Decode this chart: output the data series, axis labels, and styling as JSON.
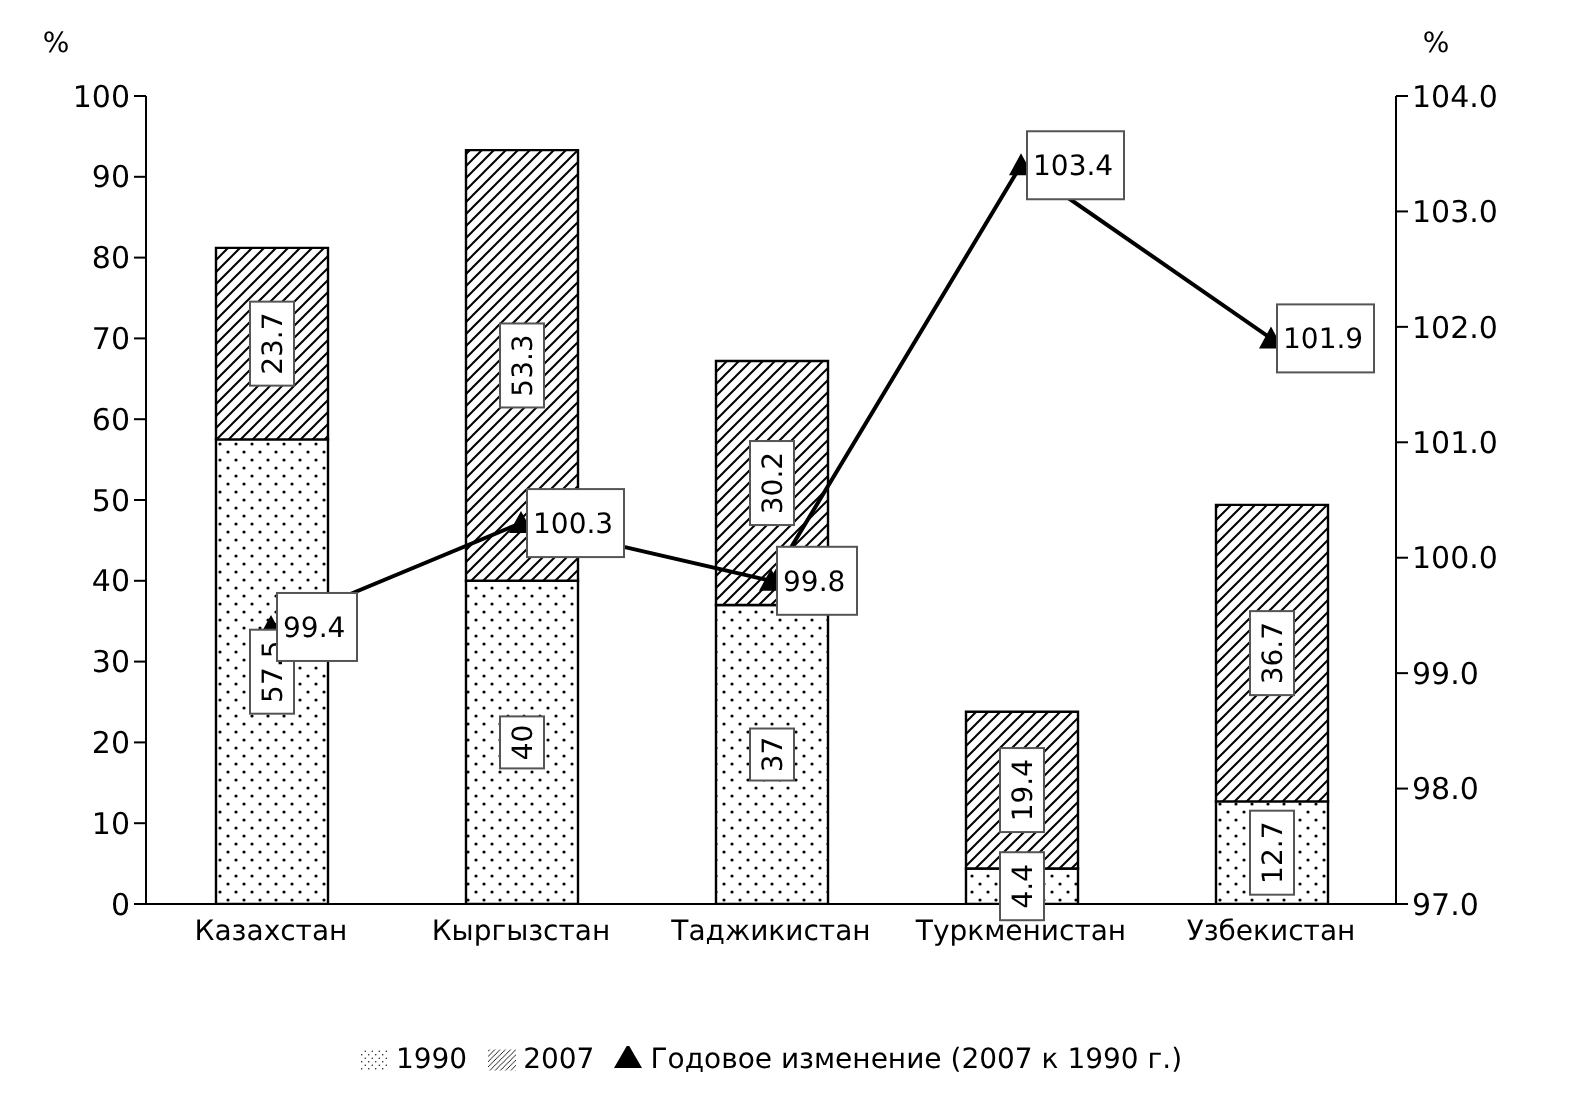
{
  "chart_data": {
    "type": "bar",
    "stacked": true,
    "categories": [
      "Казахстан",
      "Кыргызстан",
      "Таджикистан",
      "Туркменистан",
      "Узбекистан"
    ],
    "series": [
      {
        "name": "1990",
        "color": "#000000",
        "values": [
          57.5,
          40,
          37,
          4.4,
          12.7
        ]
      },
      {
        "name": "2007",
        "color": "#000000",
        "values": [
          23.7,
          53.3,
          30.2,
          19.4,
          36.7
        ]
      },
      {
        "name": "Годовое изменение (2007 к 1990 г.)",
        "type": "line",
        "axis": "y2",
        "color": "#000000",
        "values": [
          99.4,
          100.3,
          99.8,
          103.4,
          101.9
        ]
      }
    ],
    "ylim": [
      0,
      100
    ],
    "yticks": [
      0,
      10,
      20,
      30,
      40,
      50,
      60,
      70,
      80,
      90,
      100
    ],
    "y2lim": [
      97,
      104
    ],
    "y2ticks": [
      {
        "value": 97,
        "label": "97.0"
      },
      {
        "value": 98,
        "label": "98.0"
      },
      {
        "value": 99,
        "label": "99.0"
      },
      {
        "value": 100,
        "label": "100.0"
      },
      {
        "value": 101,
        "label": "101.0"
      },
      {
        "value": 102,
        "label": "102.0"
      },
      {
        "value": 103,
        "label": "103.0"
      },
      {
        "value": 104,
        "label": "104.0"
      }
    ],
    "ylabel": "%",
    "y2label": "%",
    "legend": "bottom",
    "data_labels": true,
    "marker": "triangle"
  }
}
